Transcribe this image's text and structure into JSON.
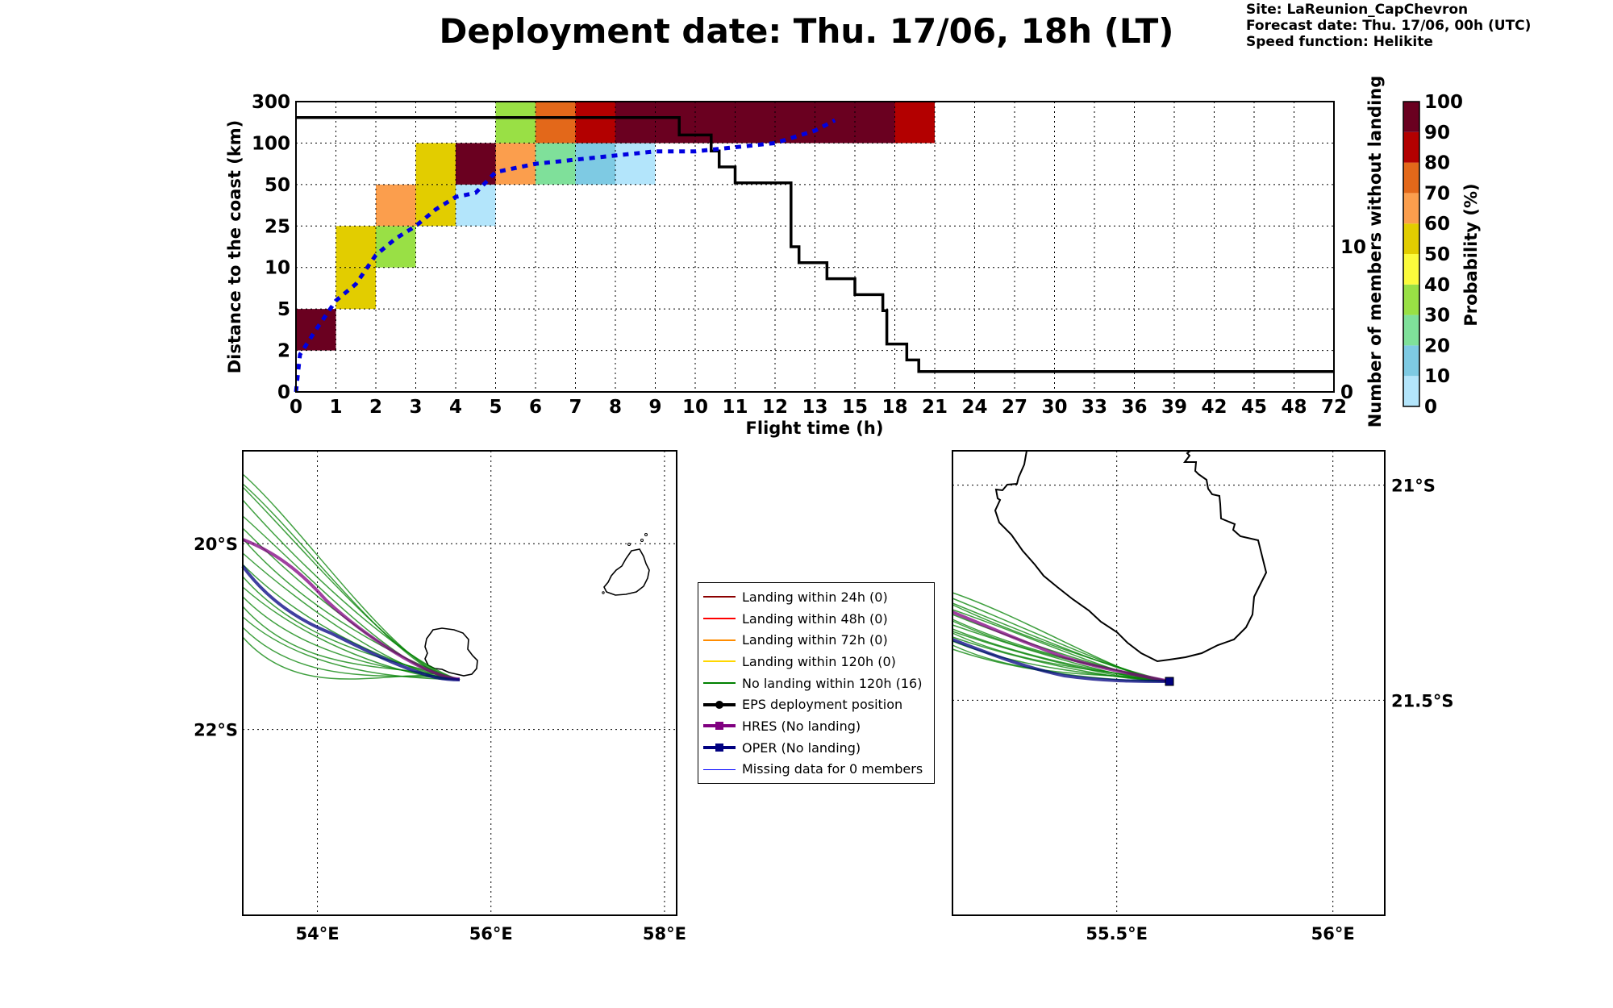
{
  "header": {
    "title": "Deployment date: Thu. 17/06, 18h (LT)",
    "site": "Site: LaReunion_CapChevron",
    "forecast": "Forecast date: Thu. 17/06, 00h (UTC)",
    "speed": "Speed function: Helikite"
  },
  "chart_data": [
    {
      "type": "heatmap",
      "xlabel": "Flight time (h)",
      "ylabel": "Distance to the coast (km)",
      "y2label": "Number of members without landing",
      "colorbar_label": "Probability (%)",
      "x_ticks": [
        "0",
        "1",
        "2",
        "3",
        "4",
        "5",
        "6",
        "7",
        "8",
        "9",
        "10",
        "11",
        "12",
        "13",
        "15",
        "18",
        "21",
        "24",
        "27",
        "30",
        "33",
        "36",
        "39",
        "42",
        "45",
        "48",
        "72"
      ],
      "y_ticks": [
        "0",
        "2",
        "5",
        "10",
        "25",
        "50",
        "100",
        "300"
      ],
      "y2_ticks": [
        "0",
        "10"
      ],
      "y2_range": [
        0,
        20
      ],
      "colorbar_ticks": [
        "0",
        "10",
        "20",
        "30",
        "40",
        "50",
        "60",
        "70",
        "80",
        "90",
        "100"
      ],
      "colorbar_colors": [
        "#b3e5fb",
        "#7ecae3",
        "#7fe09a",
        "#99e045",
        "#fbfb3c",
        "#e2cd00",
        "#fb9e4d",
        "#e3681a",
        "#b30000",
        "#6a0020"
      ],
      "cells": [
        {
          "x": 0,
          "y": 1,
          "p": 95
        },
        {
          "x": 1,
          "y": 2,
          "p": 55
        },
        {
          "x": 1,
          "y": 3,
          "p": 55
        },
        {
          "x": 2,
          "y": 3,
          "p": 35
        },
        {
          "x": 2,
          "y": 4,
          "p": 65
        },
        {
          "x": 3,
          "y": 4,
          "p": 55
        },
        {
          "x": 3,
          "y": 5,
          "p": 55
        },
        {
          "x": 4,
          "y": 4,
          "p": 5
        },
        {
          "x": 4,
          "y": 5,
          "p": 95
        },
        {
          "x": 5,
          "y": 5,
          "p": 65
        },
        {
          "x": 5,
          "y": 6,
          "p": 35
        },
        {
          "x": 6,
          "y": 5,
          "p": 25
        },
        {
          "x": 6,
          "y": 6,
          "p": 75
        },
        {
          "x": 7,
          "y": 5,
          "p": 15
        },
        {
          "x": 7,
          "y": 6,
          "p": 85
        },
        {
          "x": 8,
          "y": 5,
          "p": 5
        },
        {
          "x": 8,
          "y": 6,
          "p": 95
        },
        {
          "x": 9,
          "y": 6,
          "p": 95
        },
        {
          "x": 10,
          "y": 6,
          "p": 95
        },
        {
          "x": 11,
          "y": 6,
          "p": 95
        },
        {
          "x": 12,
          "y": 6,
          "p": 95
        },
        {
          "x": 13,
          "y": 6,
          "p": 95
        },
        {
          "x": 14,
          "y": 6,
          "p": 95
        },
        {
          "x": 15,
          "y": 6,
          "p": 85
        }
      ],
      "distance_line": [
        [
          0,
          0
        ],
        [
          0.1,
          0.9
        ],
        [
          0.5,
          1.5
        ],
        [
          1,
          2.2
        ],
        [
          1.5,
          2.6
        ],
        [
          2,
          3.3
        ],
        [
          2.5,
          3.7
        ],
        [
          3,
          4.0
        ],
        [
          3.5,
          4.4
        ],
        [
          4,
          4.7
        ],
        [
          4.5,
          4.8
        ],
        [
          5,
          5.3
        ],
        [
          5.5,
          5.4
        ],
        [
          6,
          5.5
        ],
        [
          7,
          5.6
        ],
        [
          8,
          5.7
        ],
        [
          9,
          5.8
        ],
        [
          10,
          5.8
        ],
        [
          11,
          5.9
        ],
        [
          12,
          6.0
        ],
        [
          13,
          6.3
        ],
        [
          13.5,
          6.55
        ]
      ],
      "members_step": [
        [
          0,
          18.9
        ],
        [
          9.6,
          18.9
        ],
        [
          9.6,
          17.7
        ],
        [
          10.4,
          17.7
        ],
        [
          10.4,
          16.6
        ],
        [
          10.6,
          16.6
        ],
        [
          10.6,
          15.5
        ],
        [
          11,
          15.5
        ],
        [
          11,
          14.4
        ],
        [
          12.4,
          14.4
        ],
        [
          12.4,
          10.0
        ],
        [
          12.6,
          10.0
        ],
        [
          12.6,
          8.9
        ],
        [
          13.3,
          8.9
        ],
        [
          13.3,
          7.8
        ],
        [
          14,
          7.8
        ],
        [
          14,
          6.7
        ],
        [
          14.7,
          6.7
        ],
        [
          14.7,
          5.6
        ],
        [
          14.8,
          5.6
        ],
        [
          14.8,
          3.3
        ],
        [
          15.3,
          3.3
        ],
        [
          15.3,
          2.2
        ],
        [
          15.6,
          2.2
        ],
        [
          15.6,
          1.4
        ],
        [
          26,
          1.4
        ]
      ]
    },
    {
      "type": "line",
      "title": "",
      "x_ticks": [
        "54°E",
        "56°E",
        "58°E"
      ],
      "x_tick_values": [
        54,
        56,
        58
      ],
      "y_ticks": [
        "20°S",
        "22°S"
      ],
      "y_tick_values": [
        -20,
        -22
      ],
      "xlim": [
        53.14,
        58.14
      ],
      "ylim": [
        -24,
        -19
      ]
    },
    {
      "type": "line",
      "title": "",
      "x_ticks": [
        "55.5°E",
        "56°E"
      ],
      "x_tick_values": [
        55.5,
        56
      ],
      "y_ticks": [
        "21°S",
        "21.5°S"
      ],
      "y_tick_values": [
        -21,
        -21.5
      ],
      "xlim": [
        55.12,
        56.12
      ],
      "ylim": [
        -22,
        -20.92
      ]
    }
  ],
  "legend": {
    "items": [
      {
        "label": "Landing within 24h (0)",
        "color": "#8b0000",
        "marker": "none"
      },
      {
        "label": "Landing within 48h (0)",
        "color": "#ff0000",
        "marker": "none"
      },
      {
        "label": "Landing within 72h (0)",
        "color": "#ff8c00",
        "marker": "none"
      },
      {
        "label": "Landing within 120h (0)",
        "color": "#ffd700",
        "marker": "none"
      },
      {
        "label": "No landing within 120h (16)",
        "color": "#008000",
        "marker": "none"
      },
      {
        "label": "EPS deployment position",
        "color": "#000000",
        "marker": "dot"
      },
      {
        "label": "HRES (No landing)",
        "color": "#800080",
        "marker": "square"
      },
      {
        "label": "OPER (No landing)",
        "color": "#000080",
        "marker": "square"
      },
      {
        "label": "Missing data for 0 members",
        "color": "#0000ff",
        "marker": "thin"
      }
    ]
  }
}
